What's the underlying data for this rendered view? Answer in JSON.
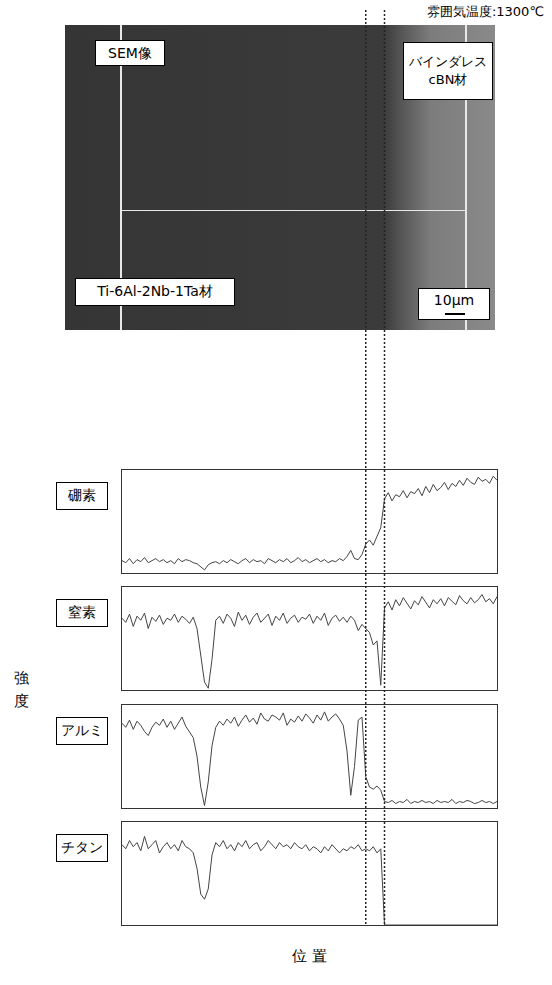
{
  "image": {
    "temperature_label": "雰囲気温度:1300℃",
    "sem_label": "SEM像",
    "cbn_label": [
      "バインダレス",
      "cBN材"
    ],
    "ti_label": "Ti-6Al-2Nb-1Ta材",
    "scale_bar": "10μm"
  },
  "y_axis_label": "強度",
  "x_axis_label": "位 置",
  "boundaries": [
    65,
    70
  ],
  "chart_data": [
    {
      "type": "line",
      "title": "硼素",
      "color": "#444444",
      "grid": false,
      "tick_labels": false,
      "xlim": [
        0,
        100
      ],
      "ylim": [
        0,
        100
      ],
      "x": [
        0,
        1,
        2,
        3,
        4,
        5,
        6,
        7,
        8,
        9,
        10,
        11,
        12,
        13,
        14,
        15,
        16,
        17,
        18,
        19,
        20,
        21,
        22,
        23,
        24,
        25,
        26,
        27,
        28,
        29,
        30,
        31,
        32,
        33,
        34,
        35,
        36,
        37,
        38,
        39,
        40,
        41,
        42,
        43,
        44,
        45,
        46,
        47,
        48,
        49,
        50,
        51,
        52,
        53,
        54,
        55,
        56,
        57,
        58,
        59,
        60,
        61,
        62,
        63,
        64,
        65,
        66,
        67,
        68,
        69,
        70,
        71,
        72,
        73,
        74,
        75,
        76,
        77,
        78,
        79,
        80,
        81,
        82,
        83,
        84,
        85,
        86,
        87,
        88,
        89,
        90,
        91,
        92,
        93,
        94,
        95,
        96,
        97,
        98,
        99,
        100
      ],
      "values": [
        12,
        10,
        14,
        9,
        13,
        11,
        15,
        10,
        12,
        14,
        11,
        13,
        10,
        12,
        9,
        14,
        11,
        13,
        12,
        10,
        9,
        6,
        3,
        8,
        10,
        11,
        9,
        12,
        10,
        13,
        11,
        9,
        12,
        14,
        10,
        13,
        11,
        12,
        9,
        14,
        12,
        10,
        13,
        11,
        14,
        10,
        12,
        15,
        11,
        13,
        10,
        12,
        14,
        11,
        13,
        10,
        12,
        11,
        14,
        12,
        16,
        22,
        14,
        13,
        18,
        28,
        32,
        27,
        36,
        44,
        72,
        78,
        70,
        76,
        74,
        80,
        73,
        79,
        77,
        82,
        75,
        84,
        78,
        86,
        80,
        83,
        88,
        81,
        87,
        84,
        90,
        85,
        92,
        88,
        86,
        93,
        89,
        91,
        87,
        94,
        90
      ]
    },
    {
      "type": "line",
      "title": "窒素",
      "color": "#444444",
      "grid": false,
      "tick_labels": false,
      "xlim": [
        0,
        100
      ],
      "ylim": [
        0,
        100
      ],
      "x": [
        0,
        1,
        2,
        3,
        4,
        5,
        6,
        7,
        8,
        9,
        10,
        11,
        12,
        13,
        14,
        15,
        16,
        17,
        18,
        19,
        20,
        21,
        22,
        23,
        24,
        25,
        26,
        27,
        28,
        29,
        30,
        31,
        32,
        33,
        34,
        35,
        36,
        37,
        38,
        39,
        40,
        41,
        42,
        43,
        44,
        45,
        46,
        47,
        48,
        49,
        50,
        51,
        52,
        53,
        54,
        55,
        56,
        57,
        58,
        59,
        60,
        61,
        62,
        63,
        64,
        65,
        66,
        67,
        68,
        69,
        70,
        71,
        72,
        73,
        74,
        75,
        76,
        77,
        78,
        79,
        80,
        81,
        82,
        83,
        84,
        85,
        86,
        87,
        88,
        89,
        90,
        91,
        92,
        93,
        94,
        95,
        96,
        97,
        98,
        99,
        100
      ],
      "values": [
        70,
        66,
        74,
        62,
        72,
        68,
        75,
        60,
        71,
        67,
        73,
        64,
        70,
        68,
        74,
        66,
        72,
        69,
        65,
        71,
        60,
        35,
        8,
        2,
        30,
        68,
        72,
        65,
        74,
        70,
        62,
        76,
        68,
        73,
        64,
        71,
        75,
        66,
        70,
        74,
        63,
        72,
        68,
        75,
        65,
        70,
        73,
        66,
        71,
        69,
        74,
        65,
        72,
        68,
        75,
        63,
        70,
        73,
        67,
        71,
        66,
        72,
        68,
        58,
        64,
        60,
        56,
        44,
        48,
        5,
        80,
        86,
        78,
        88,
        82,
        90,
        84,
        79,
        87,
        83,
        91,
        85,
        80,
        88,
        84,
        89,
        82,
        90,
        86,
        83,
        92,
        87,
        84,
        90,
        85,
        88,
        93,
        86,
        89,
        84,
        91
      ]
    },
    {
      "type": "line",
      "title": "アルミ",
      "color": "#444444",
      "grid": false,
      "tick_labels": false,
      "xlim": [
        0,
        100
      ],
      "ylim": [
        0,
        100
      ],
      "x": [
        0,
        1,
        2,
        3,
        4,
        5,
        6,
        7,
        8,
        9,
        10,
        11,
        12,
        13,
        14,
        15,
        16,
        17,
        18,
        19,
        20,
        21,
        22,
        23,
        24,
        25,
        26,
        27,
        28,
        29,
        30,
        31,
        32,
        33,
        34,
        35,
        36,
        37,
        38,
        39,
        40,
        41,
        42,
        43,
        44,
        45,
        46,
        47,
        48,
        49,
        50,
        51,
        52,
        53,
        54,
        55,
        56,
        57,
        58,
        59,
        60,
        61,
        62,
        63,
        64,
        65,
        66,
        67,
        68,
        69,
        70,
        71,
        72,
        73,
        74,
        75,
        76,
        77,
        78,
        79,
        80,
        81,
        82,
        83,
        84,
        85,
        86,
        87,
        88,
        89,
        90,
        91,
        92,
        93,
        94,
        95,
        96,
        97,
        98,
        99,
        100
      ],
      "values": [
        82,
        78,
        85,
        76,
        84,
        80,
        74,
        70,
        78,
        83,
        80,
        86,
        78,
        84,
        76,
        82,
        88,
        79,
        74,
        68,
        50,
        20,
        2,
        25,
        60,
        78,
        84,
        80,
        86,
        82,
        88,
        79,
        85,
        90,
        83,
        87,
        81,
        92,
        86,
        84,
        90,
        88,
        85,
        92,
        80,
        86,
        83,
        89,
        84,
        91,
        87,
        82,
        90,
        85,
        93,
        84,
        88,
        91,
        86,
        80,
        55,
        12,
        40,
        85,
        88,
        30,
        20,
        18,
        21,
        17,
        6,
        5,
        7,
        4,
        6,
        5,
        8,
        4,
        6,
        5,
        7,
        5,
        6,
        4,
        7,
        5,
        6,
        5,
        8,
        4,
        6,
        5,
        7,
        6,
        4,
        5,
        7,
        5,
        6,
        4,
        6
      ]
    },
    {
      "type": "line",
      "title": "チタン",
      "color": "#444444",
      "grid": false,
      "tick_labels": false,
      "xlim": [
        0,
        100
      ],
      "ylim": [
        0,
        100
      ],
      "x": [
        0,
        1,
        2,
        3,
        4,
        5,
        6,
        7,
        8,
        9,
        10,
        11,
        12,
        13,
        14,
        15,
        16,
        17,
        18,
        19,
        20,
        21,
        22,
        23,
        24,
        25,
        26,
        27,
        28,
        29,
        30,
        31,
        32,
        33,
        34,
        35,
        36,
        37,
        38,
        39,
        40,
        41,
        42,
        43,
        44,
        45,
        46,
        47,
        48,
        49,
        50,
        51,
        52,
        53,
        54,
        55,
        56,
        57,
        58,
        59,
        60,
        61,
        62,
        63,
        64,
        65,
        66,
        67,
        68,
        69,
        70,
        71,
        72,
        73,
        74,
        75,
        76,
        77,
        78,
        79,
        80,
        81,
        82,
        83,
        84,
        85,
        86,
        87,
        88,
        89,
        90,
        91,
        92,
        93,
        94,
        95,
        96,
        97,
        98,
        99,
        100
      ],
      "values": [
        78,
        74,
        82,
        76,
        80,
        72,
        86,
        74,
        78,
        82,
        70,
        76,
        80,
        74,
        78,
        72,
        82,
        76,
        74,
        70,
        55,
        30,
        25,
        35,
        68,
        80,
        76,
        82,
        74,
        78,
        72,
        80,
        76,
        82,
        74,
        78,
        80,
        72,
        76,
        82,
        78,
        74,
        80,
        76,
        78,
        74,
        80,
        76,
        74,
        78,
        72,
        76,
        74,
        70,
        76,
        72,
        78,
        74,
        70,
        74,
        72,
        76,
        74,
        78,
        72,
        74,
        72,
        76,
        70,
        74,
        0,
        0,
        0,
        0,
        0,
        0,
        0,
        0,
        0,
        0,
        0,
        0,
        0,
        0,
        0,
        0,
        0,
        0,
        0,
        0,
        0,
        0,
        0,
        0,
        0,
        0,
        0,
        0,
        0,
        0,
        0
      ]
    }
  ]
}
